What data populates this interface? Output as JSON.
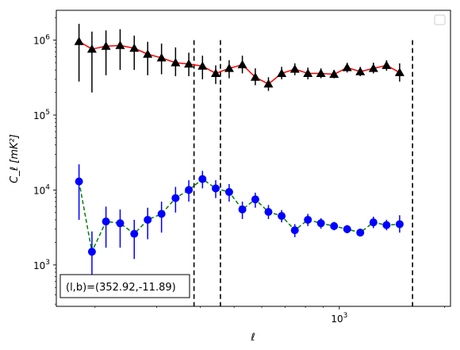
{
  "chart_data": {
    "type": "scatter",
    "title": "",
    "xlabel": "ℓ",
    "ylabel": "C_ℓ  [mK²]",
    "xscale": "log",
    "yscale": "log",
    "xlim": [
      155,
      2080
    ],
    "ylim": [
      280,
      2500000
    ],
    "x_tick_labels": [
      {
        "value": 1000,
        "base": "10",
        "exp": "3"
      }
    ],
    "y_tick_labels": [
      {
        "value": 1000,
        "base": "10",
        "exp": "3"
      },
      {
        "value": 10000,
        "base": "10",
        "exp": "4"
      },
      {
        "value": 100000,
        "base": "10",
        "exp": "5"
      },
      {
        "value": 1000000,
        "base": "10",
        "exp": "6"
      }
    ],
    "legend": "top-right",
    "annotation": "(l,b)=(352.92,-11.89)",
    "vlines": [
      384,
      457,
      1620
    ],
    "series": [
      {
        "marker": "triangle",
        "marker_color": "#000000",
        "errbar_color": "#000000",
        "fit_color": "#ff0000",
        "fit_style": "solid",
        "points": [
          {
            "x": 180,
            "y": 960000,
            "lo": 280000,
            "hi": 1650000
          },
          {
            "x": 196,
            "y": 760000,
            "lo": 200000,
            "hi": 1300000
          },
          {
            "x": 215,
            "y": 830000,
            "lo": 340000,
            "hi": 1350000
          },
          {
            "x": 236,
            "y": 850000,
            "lo": 400000,
            "hi": 1400000
          },
          {
            "x": 259,
            "y": 780000,
            "lo": 400000,
            "hi": 1150000
          },
          {
            "x": 283,
            "y": 650000,
            "lo": 340000,
            "hi": 950000
          },
          {
            "x": 310,
            "y": 580000,
            "lo": 350000,
            "hi": 900000
          },
          {
            "x": 340,
            "y": 500000,
            "lo": 330000,
            "hi": 800000
          },
          {
            "x": 371,
            "y": 480000,
            "lo": 330000,
            "hi": 680000
          },
          {
            "x": 406,
            "y": 450000,
            "lo": 300000,
            "hi": 620000
          },
          {
            "x": 443,
            "y": 360000,
            "lo": 260000,
            "hi": 460000
          },
          {
            "x": 484,
            "y": 420000,
            "lo": 310000,
            "hi": 540000
          },
          {
            "x": 528,
            "y": 470000,
            "lo": 360000,
            "hi": 620000
          },
          {
            "x": 575,
            "y": 320000,
            "lo": 250000,
            "hi": 420000
          },
          {
            "x": 627,
            "y": 260000,
            "lo": 210000,
            "hi": 320000
          },
          {
            "x": 684,
            "y": 360000,
            "lo": 300000,
            "hi": 440000
          },
          {
            "x": 746,
            "y": 410000,
            "lo": 340000,
            "hi": 490000
          },
          {
            "x": 813,
            "y": 360000,
            "lo": 300000,
            "hi": 430000
          },
          {
            "x": 886,
            "y": 360000,
            "lo": 310000,
            "hi": 420000
          },
          {
            "x": 966,
            "y": 350000,
            "lo": 310000,
            "hi": 400000
          },
          {
            "x": 1053,
            "y": 430000,
            "lo": 370000,
            "hi": 500000
          },
          {
            "x": 1148,
            "y": 380000,
            "lo": 330000,
            "hi": 440000
          },
          {
            "x": 1252,
            "y": 420000,
            "lo": 360000,
            "hi": 500000
          },
          {
            "x": 1365,
            "y": 460000,
            "lo": 390000,
            "hi": 540000
          },
          {
            "x": 1488,
            "y": 370000,
            "lo": 280000,
            "hi": 490000
          }
        ]
      },
      {
        "marker": "circle",
        "marker_color": "#0000ff",
        "errbar_color": "#0000ff",
        "fit_color": "#008000",
        "fit_style": "dashed",
        "points": [
          {
            "x": 180,
            "y": 13000,
            "lo": 4000,
            "hi": 22000
          },
          {
            "x": 196,
            "y": 1500,
            "lo": 500,
            "hi": 2800
          },
          {
            "x": 215,
            "y": 3800,
            "lo": 1700,
            "hi": 6000
          },
          {
            "x": 236,
            "y": 3600,
            "lo": 1700,
            "hi": 5500
          },
          {
            "x": 259,
            "y": 2600,
            "lo": 1200,
            "hi": 4000
          },
          {
            "x": 283,
            "y": 4000,
            "lo": 2200,
            "hi": 5800
          },
          {
            "x": 310,
            "y": 4800,
            "lo": 2700,
            "hi": 7000
          },
          {
            "x": 340,
            "y": 7800,
            "lo": 5000,
            "hi": 11000
          },
          {
            "x": 371,
            "y": 10000,
            "lo": 7000,
            "hi": 13500
          },
          {
            "x": 406,
            "y": 14000,
            "lo": 10500,
            "hi": 18000
          },
          {
            "x": 443,
            "y": 10500,
            "lo": 7800,
            "hi": 13500
          },
          {
            "x": 484,
            "y": 9400,
            "lo": 7000,
            "hi": 12000
          },
          {
            "x": 528,
            "y": 5500,
            "lo": 4100,
            "hi": 7000
          },
          {
            "x": 575,
            "y": 7500,
            "lo": 5800,
            "hi": 9200
          },
          {
            "x": 627,
            "y": 5100,
            "lo": 4100,
            "hi": 6300
          },
          {
            "x": 684,
            "y": 4500,
            "lo": 3700,
            "hi": 5400
          },
          {
            "x": 746,
            "y": 2900,
            "lo": 2350,
            "hi": 3500
          },
          {
            "x": 813,
            "y": 4000,
            "lo": 3300,
            "hi": 4800
          },
          {
            "x": 886,
            "y": 3600,
            "lo": 3050,
            "hi": 4200
          },
          {
            "x": 966,
            "y": 3300,
            "lo": 2900,
            "hi": 3750
          },
          {
            "x": 1053,
            "y": 3000,
            "lo": 2650,
            "hi": 3400
          },
          {
            "x": 1148,
            "y": 2700,
            "lo": 2400,
            "hi": 3050
          },
          {
            "x": 1252,
            "y": 3700,
            "lo": 3100,
            "hi": 4400
          },
          {
            "x": 1365,
            "y": 3400,
            "lo": 2900,
            "hi": 4000
          },
          {
            "x": 1488,
            "y": 3500,
            "lo": 2700,
            "hi": 4600
          }
        ]
      }
    ]
  }
}
